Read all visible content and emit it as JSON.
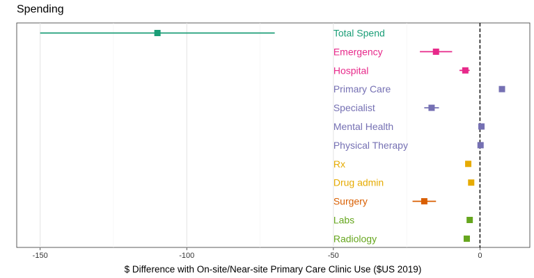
{
  "chart_data": {
    "type": "scatter",
    "title": "Spending",
    "xlabel": "$ Difference with On-site/Near-site Primary Care Clinic Use  ($US 2019)",
    "ylabel": "",
    "xlim": [
      -158,
      17
    ],
    "x_ticks": [
      -150,
      -100,
      -50,
      0
    ],
    "x_tick_labels": [
      "-150",
      "-100",
      "-50",
      "0"
    ],
    "grid": "vertical gridlines",
    "reference_line": 0,
    "categories": [
      "Total Spend",
      "Emergency",
      "Hospital",
      "Primary Care",
      "Specialist",
      "Mental Health",
      "Physical Therapy",
      "Rx",
      "Drug admin",
      "Surgery",
      "Labs",
      "Radiology"
    ],
    "series": [
      {
        "category": "Total Spend",
        "color": "#1b9e77",
        "estimate": -110,
        "ci_low": -150,
        "ci_high": -70
      },
      {
        "category": "Emergency",
        "color": "#e7298a",
        "estimate": -15,
        "ci_low": -20.5,
        "ci_high": -9.5
      },
      {
        "category": "Hospital",
        "color": "#e7298a",
        "estimate": -5,
        "ci_low": -7,
        "ci_high": -3.5
      },
      {
        "category": "Primary Care",
        "color": "#7570b3",
        "estimate": 7.5,
        "ci_low": 7,
        "ci_high": 8
      },
      {
        "category": "Specialist",
        "color": "#7570b3",
        "estimate": -16.5,
        "ci_low": -19,
        "ci_high": -14
      },
      {
        "category": "Mental Health",
        "color": "#7570b3",
        "estimate": 0.5,
        "ci_low": 0,
        "ci_high": 1
      },
      {
        "category": "Physical Therapy",
        "color": "#7570b3",
        "estimate": 0.2,
        "ci_low": -0.2,
        "ci_high": 0.6
      },
      {
        "category": "Rx",
        "color": "#e6ab02",
        "estimate": -4,
        "ci_low": -5,
        "ci_high": -3
      },
      {
        "category": "Drug admin",
        "color": "#e6ab02",
        "estimate": -3,
        "ci_low": -3.4,
        "ci_high": -2.6
      },
      {
        "category": "Surgery",
        "color": "#d95f02",
        "estimate": -19,
        "ci_low": -23,
        "ci_high": -15
      },
      {
        "category": "Labs",
        "color": "#66a61e",
        "estimate": -3.5,
        "ci_low": -4,
        "ci_high": -3
      },
      {
        "category": "Radiology",
        "color": "#66a61e",
        "estimate": -4.5,
        "ci_low": -5,
        "ci_high": -4
      }
    ]
  }
}
